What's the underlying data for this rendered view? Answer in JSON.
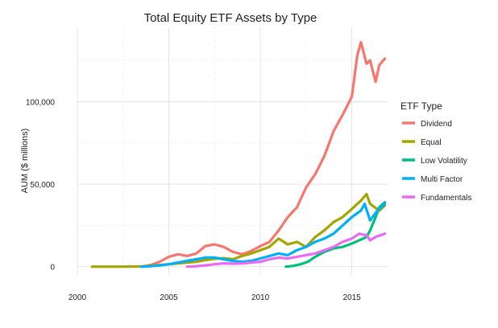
{
  "chart_data": {
    "type": "line",
    "title": "Total Equity ETF Assets by Type",
    "xlabel": "",
    "ylabel": "AUM ($ millions)",
    "xlim": [
      2000,
      2017
    ],
    "ylim": [
      -5000,
      145000
    ],
    "x_ticks": [
      2000,
      2005,
      2010,
      2015
    ],
    "x_tick_labels": [
      "2000",
      "2005",
      "2010",
      "2015"
    ],
    "y_ticks": [
      0,
      50000,
      100000
    ],
    "y_tick_labels": [
      "0",
      "50,000",
      "100,000"
    ],
    "grid": true,
    "legend": {
      "title": "ETF Type",
      "position": "right"
    },
    "series": [
      {
        "name": "Dividend",
        "color": "#F8766D",
        "x": [
          2003.5,
          2004.0,
          2004.5,
          2005.0,
          2005.5,
          2006.0,
          2006.5,
          2007.0,
          2007.5,
          2008.0,
          2008.5,
          2009.0,
          2009.5,
          2010.0,
          2010.5,
          2011.0,
          2011.5,
          2012.0,
          2012.5,
          2013.0,
          2013.5,
          2014.0,
          2014.5,
          2015.0,
          2015.3,
          2015.5,
          2015.8,
          2016.0,
          2016.3,
          2016.5,
          2016.8
        ],
        "values": [
          0,
          1000,
          3000,
          6000,
          7500,
          6500,
          8000,
          12500,
          13500,
          12000,
          9000,
          7500,
          9500,
          12500,
          15000,
          22000,
          30000,
          36000,
          48000,
          56000,
          67000,
          82000,
          92000,
          103000,
          128000,
          136000,
          123000,
          125000,
          112000,
          122000,
          126000
        ]
      },
      {
        "name": "Equal",
        "color": "#A3A500",
        "x": [
          2000.8,
          2001.5,
          2002.5,
          2003.5,
          2004.5,
          2005.5,
          2006.5,
          2007.0,
          2007.5,
          2008.0,
          2008.5,
          2009.0,
          2009.5,
          2010.0,
          2010.5,
          2011.0,
          2011.5,
          2012.0,
          2012.5,
          2013.0,
          2013.5,
          2014.0,
          2014.5,
          2015.0,
          2015.5,
          2015.8,
          2016.0,
          2016.5,
          2016.8
        ],
        "values": [
          0,
          0,
          0,
          200,
          1000,
          2000,
          3000,
          4000,
          4800,
          5200,
          4500,
          6500,
          8000,
          10000,
          12000,
          17000,
          13500,
          15000,
          12000,
          18000,
          22000,
          27000,
          30000,
          35000,
          40000,
          44000,
          38000,
          34000,
          37000
        ]
      },
      {
        "name": "Low Volatility",
        "color": "#00BF7D",
        "x": [
          2011.4,
          2011.8,
          2012.2,
          2012.6,
          2013.0,
          2013.5,
          2014.0,
          2014.5,
          2015.0,
          2015.4,
          2015.8,
          2016.0,
          2016.3,
          2016.5,
          2016.8
        ],
        "values": [
          0,
          500,
          1500,
          3000,
          6000,
          9000,
          11000,
          12000,
          14000,
          16000,
          18000,
          22000,
          30000,
          36000,
          39000
        ]
      },
      {
        "name": "Multi Factor",
        "color": "#00B0F6",
        "x": [
          2003.5,
          2004.0,
          2004.5,
          2005.0,
          2005.5,
          2006.0,
          2006.5,
          2007.0,
          2007.5,
          2008.0,
          2008.5,
          2009.0,
          2009.5,
          2010.0,
          2010.5,
          2011.0,
          2011.5,
          2012.0,
          2012.5,
          2013.0,
          2013.5,
          2014.0,
          2014.5,
          2015.0,
          2015.5,
          2015.7,
          2016.0,
          2016.4,
          2016.8
        ],
        "values": [
          0,
          300,
          800,
          1500,
          2500,
          3500,
          4500,
          5500,
          5500,
          4500,
          3500,
          3000,
          3500,
          5000,
          6500,
          8000,
          7000,
          10000,
          12000,
          15000,
          17000,
          20000,
          25000,
          30000,
          34000,
          38000,
          28000,
          34000,
          38000
        ]
      },
      {
        "name": "Fundamentals",
        "color": "#E76BF3",
        "x": [
          2006.0,
          2006.5,
          2007.0,
          2007.5,
          2008.0,
          2008.5,
          2009.0,
          2009.5,
          2010.0,
          2010.5,
          2011.0,
          2011.5,
          2012.0,
          2012.5,
          2013.0,
          2013.5,
          2014.0,
          2014.5,
          2015.0,
          2015.4,
          2015.8,
          2016.0,
          2016.3,
          2016.8
        ],
        "values": [
          0,
          300,
          800,
          1500,
          2000,
          1800,
          2000,
          2500,
          3000,
          4500,
          5500,
          5000,
          6000,
          7000,
          8000,
          10000,
          12000,
          15000,
          17000,
          20000,
          19000,
          16000,
          18000,
          20000
        ]
      }
    ]
  }
}
